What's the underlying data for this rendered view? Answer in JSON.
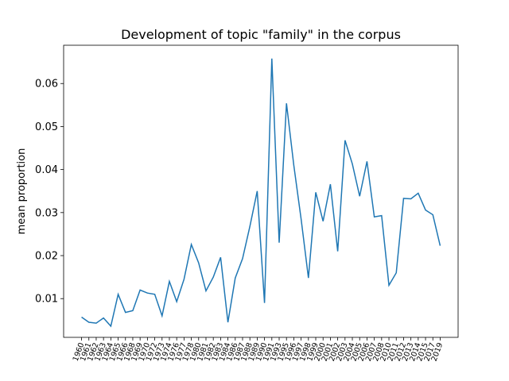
{
  "chart_data": {
    "type": "line",
    "title": "Development of topic \"family\" in the corpus",
    "ylabel": "mean proportion",
    "categories": [
      "1960",
      "1961",
      "1962",
      "1963",
      "1964",
      "1965",
      "1966",
      "1968",
      "1969",
      "1970",
      "1972",
      "1973",
      "1974",
      "1976",
      "1977",
      "1978",
      "1980",
      "1981",
      "1982",
      "1983",
      "1984",
      "1986",
      "1987",
      "1988",
      "1989",
      "1990",
      "1991",
      "1993",
      "1995",
      "1996",
      "1997",
      "1998",
      "1999",
      "2000",
      "2001",
      "2002",
      "2003",
      "2004",
      "2005",
      "2006",
      "2007",
      "2008",
      "2010",
      "2011",
      "2012",
      "2013",
      "2014",
      "2015",
      "2017",
      "2019"
    ],
    "series": [
      {
        "name": "family",
        "color": "#1f77b4",
        "values": [
          0.0057,
          0.0045,
          0.0043,
          0.0055,
          0.0036,
          0.011,
          0.0068,
          0.0072,
          0.012,
          0.0113,
          0.011,
          0.006,
          0.014,
          0.0093,
          0.0145,
          0.0226,
          0.0183,
          0.0118,
          0.015,
          0.0196,
          0.0045,
          0.0148,
          0.0193,
          0.0268,
          0.035,
          0.009,
          0.0658,
          0.023,
          0.0554,
          0.041,
          0.0285,
          0.0148,
          0.0347,
          0.028,
          0.0366,
          0.021,
          0.0468,
          0.0413,
          0.0338,
          0.0419,
          0.029,
          0.0293,
          0.0131,
          0.016,
          0.0333,
          0.0332,
          0.0345,
          0.0306,
          0.0295,
          0.0223
        ]
      }
    ],
    "ylim": [
      0.001,
      0.0689
    ],
    "yticks": [
      0.01,
      0.02,
      0.03,
      0.04,
      0.05,
      0.06
    ],
    "grid": false
  }
}
